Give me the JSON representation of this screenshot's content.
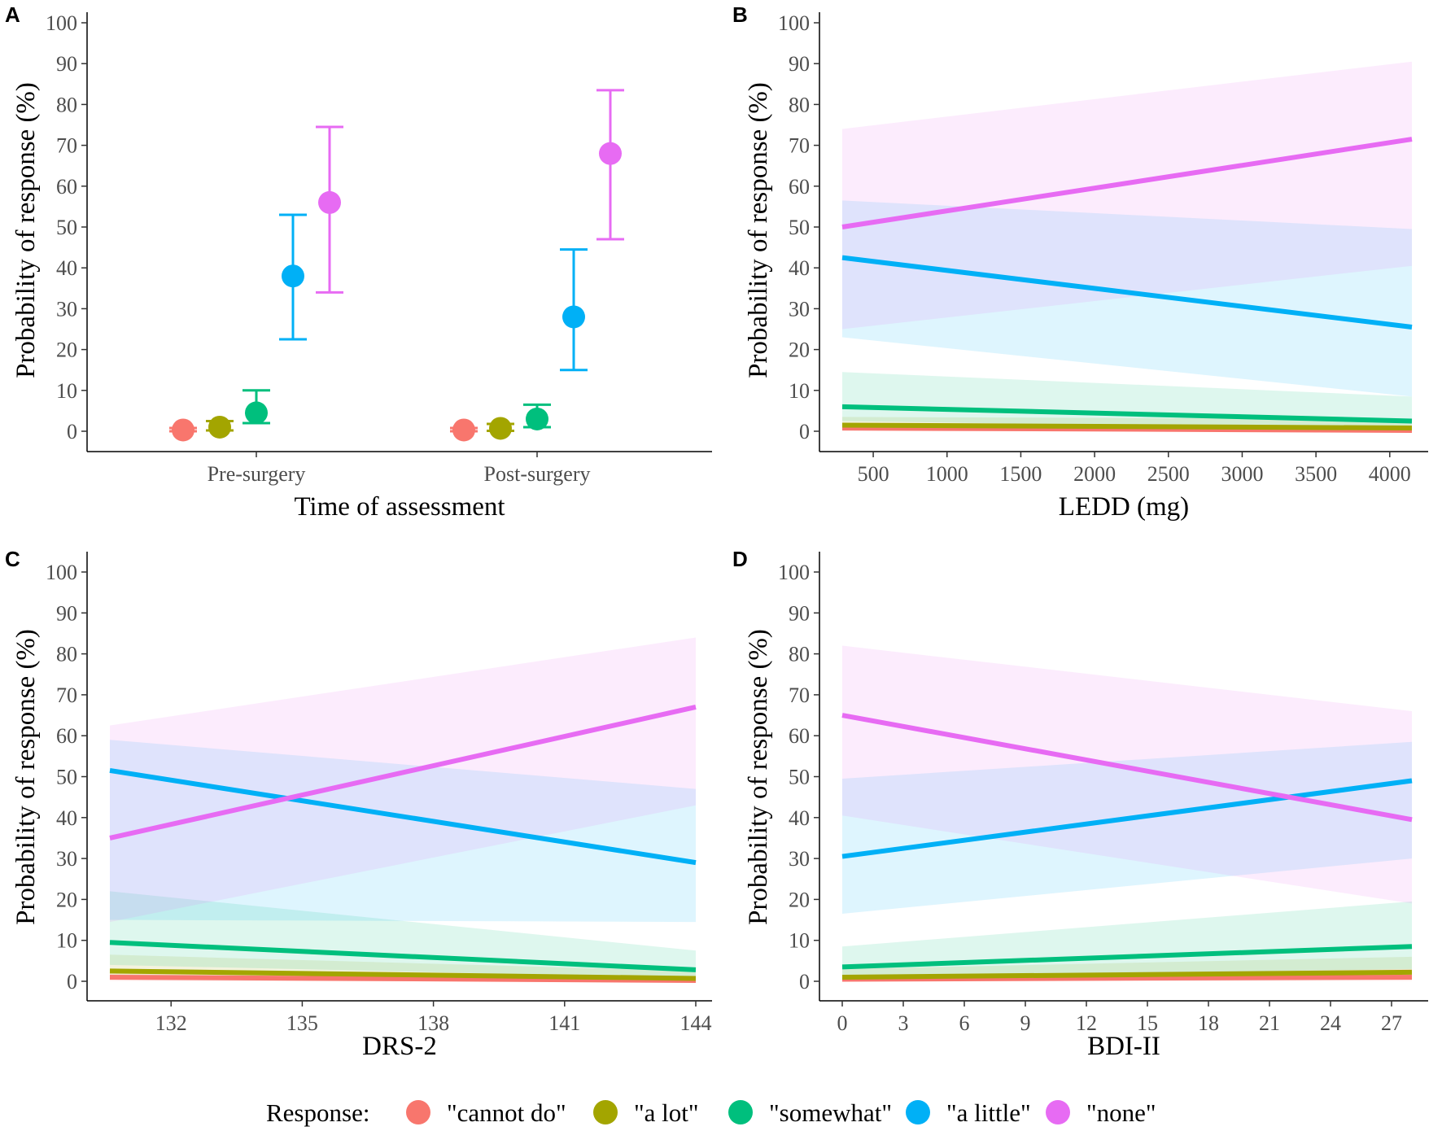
{
  "legend": {
    "title": "Response:",
    "items": [
      {
        "label": "\"cannot do\"",
        "color": "#F8766D"
      },
      {
        "label": "\"a lot\"",
        "color": "#A3A500"
      },
      {
        "label": "\"somewhat\"",
        "color": "#00BF7D"
      },
      {
        "label": "\"a little\"",
        "color": "#00B0F6"
      },
      {
        "label": "\"none\"",
        "color": "#E76BF3"
      }
    ]
  },
  "chart_data": [
    {
      "panel": "A",
      "type": "scatter",
      "ylabel": "Probability of response (%)",
      "xlabel": "Time of assessment",
      "ylim": [
        0,
        100
      ],
      "yticks": [
        "0",
        "10",
        "20",
        "30",
        "40",
        "50",
        "60",
        "70",
        "80",
        "90",
        "100"
      ],
      "categories": [
        "Pre-surgery",
        "Post-surgery"
      ],
      "series": [
        {
          "name": "\"cannot do\"",
          "values": [
            0.3,
            0.3
          ],
          "lower": [
            0.0,
            0.0
          ],
          "upper": [
            0.8,
            0.8
          ]
        },
        {
          "name": "\"a lot\"",
          "values": [
            1.0,
            0.7
          ],
          "lower": [
            0.2,
            0.1
          ],
          "upper": [
            2.5,
            1.8
          ]
        },
        {
          "name": "\"somewhat\"",
          "values": [
            4.5,
            3.0
          ],
          "lower": [
            2.0,
            1.0
          ],
          "upper": [
            10.0,
            6.5
          ]
        },
        {
          "name": "\"a little\"",
          "values": [
            38.0,
            28.0
          ],
          "lower": [
            22.5,
            15.0
          ],
          "upper": [
            53.0,
            44.5
          ]
        },
        {
          "name": "\"none\"",
          "values": [
            56.0,
            68.0
          ],
          "lower": [
            34.0,
            47.0
          ],
          "upper": [
            74.5,
            83.5
          ]
        }
      ]
    },
    {
      "panel": "B",
      "type": "line",
      "ylabel": "Probability of response (%)",
      "xlabel": "LEDD (mg)",
      "ylim": [
        0,
        100
      ],
      "xlim": [
        290,
        4150
      ],
      "xticks": [
        "500",
        "1000",
        "1500",
        "2000",
        "2500",
        "3000",
        "3500",
        "4000"
      ],
      "yticks": [
        "0",
        "10",
        "20",
        "30",
        "40",
        "50",
        "60",
        "70",
        "80",
        "90",
        "100"
      ],
      "x": [
        290,
        4150
      ],
      "series": [
        {
          "name": "\"cannot do\"",
          "values": [
            0.8,
            0.2
          ],
          "lower": [
            0.0,
            0.0
          ],
          "upper": [
            1.5,
            0.8
          ]
        },
        {
          "name": "\"a lot\"",
          "values": [
            1.5,
            0.8
          ],
          "lower": [
            0.3,
            0.1
          ],
          "upper": [
            3.5,
            3.0
          ]
        },
        {
          "name": "\"somewhat\"",
          "values": [
            6.0,
            2.5
          ],
          "lower": [
            2.5,
            0.5
          ],
          "upper": [
            14.5,
            8.5
          ]
        },
        {
          "name": "\"a little\"",
          "values": [
            42.5,
            25.5
          ],
          "lower": [
            23.0,
            8.5
          ],
          "upper": [
            56.5,
            49.5
          ]
        },
        {
          "name": "\"none\"",
          "values": [
            50.0,
            71.5
          ],
          "lower": [
            25.0,
            40.5
          ],
          "upper": [
            74.0,
            90.5
          ]
        }
      ]
    },
    {
      "panel": "C",
      "type": "line",
      "ylabel": "Probability of response (%)",
      "xlabel": "DRS-2",
      "ylim": [
        0,
        100
      ],
      "xlim": [
        130.6,
        144
      ],
      "xticks": [
        "132",
        "135",
        "138",
        "141",
        "144"
      ],
      "yticks": [
        "0",
        "10",
        "20",
        "30",
        "40",
        "50",
        "60",
        "70",
        "80",
        "90",
        "100"
      ],
      "x": [
        130.6,
        144
      ],
      "series": [
        {
          "name": "\"cannot do\"",
          "values": [
            1.0,
            0.2
          ],
          "lower": [
            0.1,
            0.0
          ],
          "upper": [
            3.0,
            0.8
          ]
        },
        {
          "name": "\"a lot\"",
          "values": [
            2.5,
            0.7
          ],
          "lower": [
            0.6,
            0.1
          ],
          "upper": [
            6.5,
            2.5
          ]
        },
        {
          "name": "\"somewhat\"",
          "values": [
            9.5,
            2.8
          ],
          "lower": [
            4.0,
            0.8
          ],
          "upper": [
            22.0,
            7.5
          ]
        },
        {
          "name": "\"a little\"",
          "values": [
            51.5,
            29.0
          ],
          "lower": [
            15.0,
            14.5
          ],
          "upper": [
            59.0,
            47.0
          ]
        },
        {
          "name": "\"none\"",
          "values": [
            35.0,
            67.0
          ],
          "lower": [
            14.5,
            43.0
          ],
          "upper": [
            62.5,
            84.0
          ]
        }
      ]
    },
    {
      "panel": "D",
      "type": "line",
      "ylabel": "Probability of response (%)",
      "xlabel": "BDI-II",
      "ylim": [
        0,
        100
      ],
      "xlim": [
        0,
        28
      ],
      "xticks": [
        "0",
        "3",
        "6",
        "9",
        "12",
        "15",
        "18",
        "21",
        "24",
        "27"
      ],
      "yticks": [
        "0",
        "10",
        "20",
        "30",
        "40",
        "50",
        "60",
        "70",
        "80",
        "90",
        "100"
      ],
      "x": [
        0,
        28
      ],
      "series": [
        {
          "name": "\"cannot do\"",
          "values": [
            0.5,
            1.0
          ],
          "lower": [
            0.0,
            0.1
          ],
          "upper": [
            1.5,
            3.0
          ]
        },
        {
          "name": "\"a lot\"",
          "values": [
            1.0,
            2.2
          ],
          "lower": [
            0.2,
            0.5
          ],
          "upper": [
            3.0,
            6.0
          ]
        },
        {
          "name": "\"somewhat\"",
          "values": [
            3.5,
            8.5
          ],
          "lower": [
            1.0,
            3.0
          ],
          "upper": [
            8.5,
            19.5
          ]
        },
        {
          "name": "\"a little\"",
          "values": [
            30.5,
            49.0
          ],
          "lower": [
            16.5,
            30.0
          ],
          "upper": [
            49.5,
            58.5
          ]
        },
        {
          "name": "\"none\"",
          "values": [
            65.0,
            39.5
          ],
          "lower": [
            40.5,
            19.0
          ],
          "upper": [
            82.0,
            66.0
          ]
        }
      ]
    }
  ]
}
